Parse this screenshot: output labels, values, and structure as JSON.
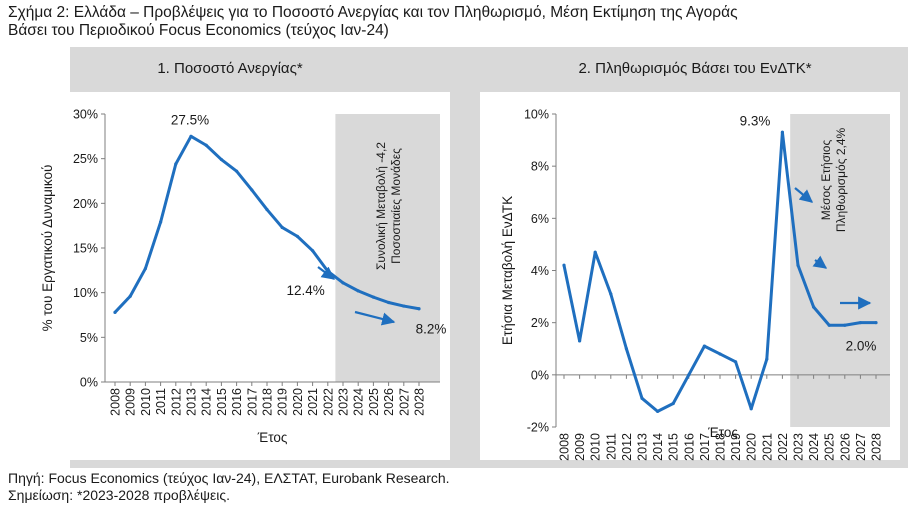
{
  "figure": {
    "title_line1": "Σχήμα 2: Ελλάδα – Προβλέψεις για το Ποσοστό Ανεργίας και τον Πληθωρισμό, Μέση Εκτίμηση της Αγοράς",
    "title_line2": "Βάσει του Περιοδικού Focus Economics (τεύχος Ιαν-24)",
    "source": "Πηγή: Focus Economics (τεύχος Ιαν-24), ΕΛΣΤΑΤ, Eurobank Research.",
    "note": "Σημείωση: *2023-2028 προβλέψεις."
  },
  "colors": {
    "series": "#1f6fbf",
    "projection_shade": "#d9d9d9",
    "axis": "#7f7f7f"
  },
  "chart_data": [
    {
      "type": "line",
      "title": "1. Ποσοστό Ανεργίας*",
      "xlabel": "Έτος",
      "ylabel": "% του Εργατικού Δυναμικού",
      "x": [
        "2008",
        "2009",
        "2010",
        "2011",
        "2012",
        "2013",
        "2014",
        "2015",
        "2016",
        "2017",
        "2018",
        "2019",
        "2020",
        "2021",
        "2022",
        "2023",
        "2024",
        "2025",
        "2026",
        "2027",
        "2028"
      ],
      "y_ticks": [
        "0%",
        "5%",
        "10%",
        "15%",
        "20%",
        "25%",
        "30%"
      ],
      "ylim": [
        0,
        30
      ],
      "series": [
        {
          "name": "Ποσοστό Ανεργίας",
          "values": [
            7.8,
            9.6,
            12.7,
            17.9,
            24.4,
            27.5,
            26.5,
            24.9,
            23.6,
            21.5,
            19.3,
            17.3,
            16.3,
            14.7,
            12.4,
            11.1,
            10.2,
            9.5,
            8.9,
            8.5,
            8.2
          ]
        }
      ],
      "projection_start": "2023",
      "projection_text": "Συνολική Μεταβολή -4,2 Ποσοστιαίες Μονάδες",
      "annotations": [
        {
          "label": "27.5%",
          "x": "2013"
        },
        {
          "label": "12.4%",
          "x": "2022"
        },
        {
          "label": "8.2%",
          "x": "2028"
        }
      ]
    },
    {
      "type": "line",
      "title": "2. Πληθωρισμός Βάσει του ΕνΔΤΚ*",
      "xlabel": "Έτος",
      "ylabel": "Ετήσια Μεταβολή ΕνΔΤΚ",
      "x": [
        "2008",
        "2009",
        "2010",
        "2011",
        "2012",
        "2013",
        "2014",
        "2015",
        "2016",
        "2017",
        "2018",
        "2019",
        "2020",
        "2021",
        "2022",
        "2023",
        "2024",
        "2025",
        "2026",
        "2027",
        "2028"
      ],
      "y_ticks": [
        "-2%",
        "0%",
        "2%",
        "4%",
        "6%",
        "8%",
        "10%"
      ],
      "ylim": [
        -2,
        10
      ],
      "series": [
        {
          "name": "Πληθωρισμός ΕνΔΤΚ",
          "values": [
            4.2,
            1.3,
            4.7,
            3.1,
            1.0,
            -0.9,
            -1.4,
            -1.1,
            0.0,
            1.1,
            0.8,
            0.5,
            -1.3,
            0.6,
            9.3,
            4.2,
            2.6,
            1.9,
            1.9,
            2.0,
            2.0
          ]
        }
      ],
      "projection_start": "2023",
      "projection_text": "Μέσος Ετήσιος Πληθωρισμός 2,4%",
      "annotations": [
        {
          "label": "9.3%",
          "x": "2022"
        },
        {
          "label": "2.0%",
          "x": "2028"
        }
      ]
    }
  ]
}
